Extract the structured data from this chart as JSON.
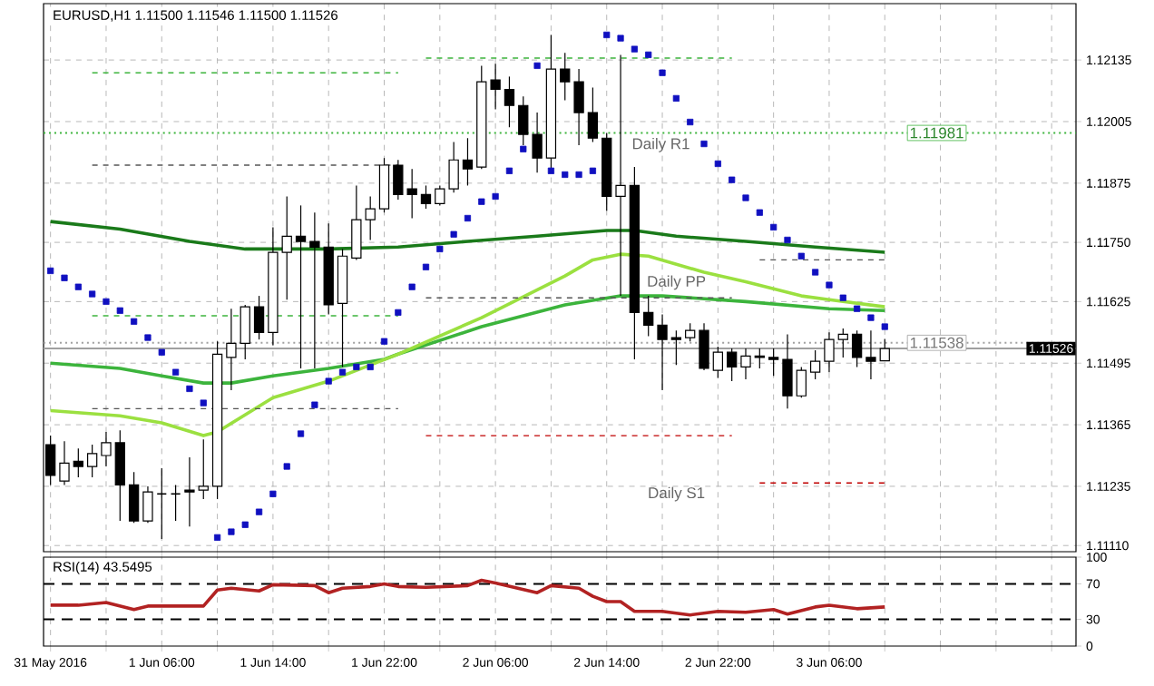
{
  "chart_data": [
    {
      "type": "candlestick",
      "title": "EURUSD,H1 1.11500 1.11546 1.11500 1.11526",
      "x": [
        "2016-05-31T22:00",
        "2016-05-31T23:00",
        "2016-06-01T00:00",
        "2016-06-01T01:00",
        "2016-06-01T02:00",
        "2016-06-01T03:00",
        "2016-06-01T04:00",
        "2016-06-01T05:00",
        "2016-06-01T06:00",
        "2016-06-01T07:00",
        "2016-06-01T08:00",
        "2016-06-01T09:00",
        "2016-06-01T10:00",
        "2016-06-01T11:00",
        "2016-06-01T12:00",
        "2016-06-01T13:00",
        "2016-06-01T14:00",
        "2016-06-01T15:00",
        "2016-06-01T16:00",
        "2016-06-01T17:00",
        "2016-06-01T18:00",
        "2016-06-01T19:00",
        "2016-06-01T20:00",
        "2016-06-01T21:00",
        "2016-06-01T22:00",
        "2016-06-01T23:00",
        "2016-06-02T00:00",
        "2016-06-02T01:00",
        "2016-06-02T02:00",
        "2016-06-02T03:00",
        "2016-06-02T04:00",
        "2016-06-02T05:00",
        "2016-06-02T06:00",
        "2016-06-02T07:00",
        "2016-06-02T08:00",
        "2016-06-02T09:00",
        "2016-06-02T10:00",
        "2016-06-02T11:00",
        "2016-06-02T12:00",
        "2016-06-02T13:00",
        "2016-06-02T14:00",
        "2016-06-02T15:00",
        "2016-06-02T16:00",
        "2016-06-02T17:00",
        "2016-06-02T18:00",
        "2016-06-02T19:00",
        "2016-06-02T20:00",
        "2016-06-02T21:00",
        "2016-06-02T22:00",
        "2016-06-02T23:00",
        "2016-06-03T00:00",
        "2016-06-03T01:00",
        "2016-06-03T02:00",
        "2016-06-03T03:00",
        "2016-06-03T04:00",
        "2016-06-03T05:00",
        "2016-06-03T06:00",
        "2016-06-03T07:00",
        "2016-06-03T08:00",
        "2016-06-03T09:00",
        "2016-06-03T10:00"
      ],
      "ohlc": [
        [
          1.11323,
          1.11342,
          1.11238,
          1.11258
        ],
        [
          1.11246,
          1.1133,
          1.11238,
          1.11284
        ],
        [
          1.11288,
          1.11315,
          1.11254,
          1.11277
        ],
        [
          1.11277,
          1.11323,
          1.11254,
          1.11304
        ],
        [
          1.113,
          1.1135,
          1.11277,
          1.11327
        ],
        [
          1.11327,
          1.11353,
          1.11162,
          1.11238
        ],
        [
          1.11238,
          1.11265,
          1.11158,
          1.11162
        ],
        [
          1.11162,
          1.11235,
          1.11158,
          1.11223
        ],
        [
          1.11219,
          1.11273,
          1.11124,
          1.11219
        ],
        [
          1.11219,
          1.11238,
          1.11162,
          1.11219
        ],
        [
          1.11227,
          1.11296,
          1.1115,
          1.11223
        ],
        [
          1.11227,
          1.11334,
          1.11208,
          1.11235
        ],
        [
          1.11235,
          1.11541,
          1.11208,
          1.11514
        ],
        [
          1.11507,
          1.1161,
          1.11438,
          1.11537
        ],
        [
          1.11537,
          1.11618,
          1.11503,
          1.11614
        ],
        [
          1.11614,
          1.11637,
          1.11545,
          1.1156
        ],
        [
          1.1156,
          1.11782,
          1.11533,
          1.11729
        ],
        [
          1.11729,
          1.11847,
          1.11629,
          1.11763
        ],
        [
          1.11763,
          1.11828,
          1.11484,
          1.11752
        ],
        [
          1.11752,
          1.11813,
          1.11484,
          1.1174
        ],
        [
          1.1174,
          1.1179,
          1.11598,
          1.11618
        ],
        [
          1.11621,
          1.11736,
          1.11487,
          1.11721
        ],
        [
          1.11717,
          1.1187,
          1.11713,
          1.11798
        ],
        [
          1.11798,
          1.11847,
          1.11755,
          1.11821
        ],
        [
          1.11821,
          1.11928,
          1.11813,
          1.11913
        ],
        [
          1.11913,
          1.11924,
          1.1184,
          1.11851
        ],
        [
          1.11863,
          1.11905,
          1.11801,
          1.11851
        ],
        [
          1.11851,
          1.1187,
          1.11821,
          1.11832
        ],
        [
          1.11832,
          1.1187,
          1.11828,
          1.11863
        ],
        [
          1.11863,
          1.11962,
          1.11855,
          1.11924
        ],
        [
          1.11924,
          1.1197,
          1.1187,
          1.11905
        ],
        [
          1.11909,
          1.12123,
          1.11905,
          1.12089
        ],
        [
          1.12093,
          1.12127,
          1.12031,
          1.12073
        ],
        [
          1.12073,
          1.121,
          1.11993,
          1.12039
        ],
        [
          1.12039,
          1.12058,
          1.11955,
          1.11978
        ],
        [
          1.11978,
          1.12024,
          1.11897,
          1.11928
        ],
        [
          1.11928,
          1.12188,
          1.11897,
          1.12116
        ],
        [
          1.12116,
          1.1215,
          1.1205,
          1.12089
        ],
        [
          1.12089,
          1.12116,
          1.11955,
          1.12024
        ],
        [
          1.12024,
          1.12077,
          1.11962,
          1.1197
        ],
        [
          1.1197,
          1.11981,
          1.11817,
          1.11847
        ],
        [
          1.11847,
          1.12146,
          1.11637,
          1.1187
        ],
        [
          1.1187,
          1.11909,
          1.11503,
          1.11602
        ],
        [
          1.11602,
          1.11637,
          1.11552,
          1.11575
        ],
        [
          1.11575,
          1.11598,
          1.11438,
          1.11545
        ],
        [
          1.11549,
          1.11564,
          1.11491,
          1.11545
        ],
        [
          1.11549,
          1.11579,
          1.11541,
          1.11564
        ],
        [
          1.11564,
          1.11579,
          1.1148,
          1.11484
        ],
        [
          1.1148,
          1.1153,
          1.11464,
          1.11518
        ],
        [
          1.11518,
          1.11526,
          1.11457,
          1.11487
        ],
        [
          1.11487,
          1.11526,
          1.11461,
          1.1151
        ],
        [
          1.1151,
          1.11526,
          1.11484,
          1.11507
        ],
        [
          1.11507,
          1.11526,
          1.11468,
          1.11503
        ],
        [
          1.11503,
          1.11556,
          1.11399,
          1.11426
        ],
        [
          1.11426,
          1.11487,
          1.11422,
          1.1148
        ],
        [
          1.11476,
          1.11522,
          1.11461,
          1.11499
        ],
        [
          1.11499,
          1.1156,
          1.11476,
          1.11545
        ],
        [
          1.11545,
          1.11568,
          1.11507,
          1.11556
        ],
        [
          1.11556,
          1.11564,
          1.11487,
          1.11507
        ],
        [
          1.11507,
          1.11564,
          1.11461,
          1.11499
        ],
        [
          1.115,
          1.11546,
          1.115,
          1.11526
        ]
      ],
      "series": [
        {
          "type": "line",
          "color": "#1a7a1a",
          "x": [
            "2016-05-31T22:00",
            "2016-06-01T03:00",
            "2016-06-01T08:00",
            "2016-06-01T12:00",
            "2016-06-01T18:00",
            "2016-06-01T23:00",
            "2016-06-02T04:00",
            "2016-06-02T09:00",
            "2016-06-02T14:00",
            "2016-06-02T16:00",
            "2016-06-02T19:00",
            "2016-06-03T00:00",
            "2016-06-03T05:00",
            "2016-06-03T10:00"
          ],
          "values": [
            1.11794,
            1.11778,
            1.11752,
            1.11736,
            1.11736,
            1.1174,
            1.11752,
            1.11763,
            1.11775,
            1.11775,
            1.11763,
            1.11752,
            1.1174,
            1.11729
          ]
        },
        {
          "type": "line",
          "color": "#3cb43c",
          "x": [
            "2016-05-31T22:00",
            "2016-06-01T03:00",
            "2016-06-01T06:00",
            "2016-06-01T09:00",
            "2016-06-01T11:00",
            "2016-06-01T14:00",
            "2016-06-01T18:00",
            "2016-06-01T22:00",
            "2016-06-01T23:00",
            "2016-06-02T05:00",
            "2016-06-02T11:00",
            "2016-06-02T15:00",
            "2016-06-02T18:00",
            "2016-06-03T00:00",
            "2016-06-03T06:00",
            "2016-06-03T10:00"
          ],
          "values": [
            1.11495,
            1.11484,
            1.11468,
            1.11453,
            1.11453,
            1.11468,
            1.11484,
            1.11503,
            1.11514,
            1.11572,
            1.11618,
            1.11637,
            1.11637,
            1.11625,
            1.1161,
            1.11606
          ]
        },
        {
          "type": "line",
          "color": "#9be040",
          "x": [
            "2016-05-31T22:00",
            "2016-06-01T03:00",
            "2016-06-01T06:00",
            "2016-06-01T09:00",
            "2016-06-01T10:00",
            "2016-06-01T14:00",
            "2016-06-01T18:00",
            "2016-06-01T23:00",
            "2016-06-02T05:00",
            "2016-06-02T11:00",
            "2016-06-02T13:00",
            "2016-06-02T15:00",
            "2016-06-02T17:00",
            "2016-06-02T21:00",
            "2016-06-03T00:00",
            "2016-06-03T04:00",
            "2016-06-03T06:00",
            "2016-06-03T10:00"
          ],
          "values": [
            1.11395,
            1.11384,
            1.11369,
            1.11342,
            1.1135,
            1.11422,
            1.11457,
            1.11514,
            1.11591,
            1.11679,
            1.11713,
            1.11725,
            1.11721,
            1.11687,
            1.11667,
            1.11637,
            1.11629,
            1.11614
          ]
        },
        {
          "type": "scatter",
          "color": "#1010c0",
          "marker": "square",
          "values": [
            1.1169,
            1.11675,
            1.11656,
            1.11641,
            1.11625,
            1.11606,
            1.11583,
            1.11549,
            1.11518,
            1.11476,
            1.11441,
            1.11411,
            1.11127,
            1.11139,
            1.11154,
            1.11181,
            1.11219,
            1.11277,
            1.11346,
            1.11407,
            1.11457,
            1.11476,
            1.11487,
            1.11487,
            1.11541,
            1.11602,
            1.11656,
            1.11698,
            1.11736,
            1.11767,
            1.11801,
            1.11836,
            1.11847,
            1.11901,
            1.11947,
            1.12123,
            1.11901,
            1.11893,
            1.11893,
            1.11901,
            1.12188,
            1.12181,
            1.12158,
            1.12146,
            1.12108,
            1.12054,
            1.12004,
            1.11958,
            1.11916,
            1.11882,
            1.11844,
            1.11813,
            1.11782,
            1.11755,
            1.11721,
            1.11687,
            1.1166,
            1.11633,
            1.1161,
            1.11591,
            1.11572
          ]
        },
        {
          "type": "line",
          "color": "#3cb43c",
          "line_style": "dashed",
          "x": [
            "2016-06-01T01:00",
            "2016-06-01T23:00"
          ],
          "values": [
            1.12108,
            1.12108
          ]
        },
        {
          "type": "line",
          "color": "#555555",
          "line_style": "dashed",
          "x": [
            "2016-06-01T01:00",
            "2016-06-01T23:00"
          ],
          "values": [
            1.11913,
            1.11913
          ]
        },
        {
          "type": "line",
          "color": "#3cb43c",
          "line_style": "dashed",
          "x": [
            "2016-06-01T01:00",
            "2016-06-01T23:00"
          ],
          "values": [
            1.11595,
            1.11595
          ]
        },
        {
          "type": "line",
          "color": "#555555",
          "line_style": "dashed",
          "x": [
            "2016-06-01T01:00",
            "2016-06-01T23:00"
          ],
          "values": [
            1.11399,
            1.11399
          ]
        },
        {
          "type": "line",
          "color": "#3cb43c",
          "line_style": "dashed",
          "x": [
            "2016-06-02T01:00",
            "2016-06-02T23:00"
          ],
          "values": [
            1.12139,
            1.12139
          ]
        },
        {
          "type": "line",
          "color": "#555555",
          "line_style": "dashed",
          "x": [
            "2016-06-02T01:00",
            "2016-06-02T23:00"
          ],
          "values": [
            1.11633,
            1.11633
          ]
        },
        {
          "type": "line",
          "color": "#c00000",
          "line_style": "dashed",
          "x": [
            "2016-06-02T01:00",
            "2016-06-02T23:00"
          ],
          "values": [
            1.11342,
            1.11342
          ]
        },
        {
          "type": "line",
          "color": "#555555",
          "line_style": "dashed",
          "x": [
            "2016-06-03T01:00",
            "2016-06-03T10:00"
          ],
          "values": [
            1.11713,
            1.11713
          ]
        },
        {
          "type": "line",
          "color": "#c00000",
          "line_style": "dashed",
          "x": [
            "2016-06-03T01:00",
            "2016-06-03T10:00"
          ],
          "values": [
            1.11242,
            1.11242
          ]
        }
      ],
      "ref_lines": [
        {
          "axis": "y",
          "value": 1.11981,
          "label": "1.11981",
          "color": "#3cb43c",
          "line_style": "dotted"
        },
        {
          "axis": "y",
          "value": 1.11538,
          "label": "1.11538",
          "color": "#a0a0a0",
          "line_style": "dotted"
        },
        {
          "axis": "y",
          "value": 1.11526,
          "label": "1.11526",
          "color": "#a0a0a0",
          "line_style": "solid"
        }
      ],
      "annotations": [
        "Daily R1",
        "Daily PP",
        "Daily S1"
      ],
      "xlim": [
        "2016-05-31T21:30",
        "2016-06-03T23:45"
      ],
      "xticks": [
        {
          "value": "2016-05-31T22:00",
          "label": null
        },
        {
          "value": "2016-06-01T02:00",
          "label": null
        },
        {
          "value": "2016-06-01T06:00",
          "label": null
        },
        {
          "value": "2016-06-01T10:00",
          "label": null
        },
        {
          "value": "2016-06-01T14:00",
          "label": null
        },
        {
          "value": "2016-06-01T18:00",
          "label": null
        },
        {
          "value": "2016-06-01T22:00",
          "label": null
        },
        {
          "value": "2016-06-02T02:00",
          "label": null
        },
        {
          "value": "2016-06-02T06:00",
          "label": null
        },
        {
          "value": "2016-06-02T10:00",
          "label": null
        },
        {
          "value": "2016-06-02T14:00",
          "label": null
        },
        {
          "value": "2016-06-02T18:00",
          "label": null
        },
        {
          "value": "2016-06-02T22:00",
          "label": null
        },
        {
          "value": "2016-06-03T02:00",
          "label": null
        },
        {
          "value": "2016-06-03T06:00",
          "label": null
        },
        {
          "value": "2016-06-03T10:00",
          "label": null
        },
        {
          "value": "2016-06-03T14:00",
          "label": null
        },
        {
          "value": "2016-06-03T18:00",
          "label": null
        },
        {
          "value": "2016-06-03T22:00",
          "label": null
        }
      ],
      "ylim": [
        1.11097,
        1.12254
      ],
      "yticks": [
        {
          "value": 1.1111,
          "label": "1.11110"
        },
        1.11235,
        1.11365,
        1.11495,
        1.11625,
        {
          "value": 1.1175,
          "label": "1.11750"
        },
        1.11875,
        1.12005,
        1.12135
      ],
      "grid": true,
      "tick_labels": "y"
    },
    {
      "type": "line",
      "title": "RSI(14) 43.5495",
      "x": [
        "2016-05-31T22:00",
        "2016-06-01T00:00",
        "2016-06-01T02:00",
        "2016-06-01T04:00",
        "2016-06-01T05:00",
        "2016-06-01T09:00",
        "2016-06-01T10:00",
        "2016-06-01T11:00",
        "2016-06-01T13:00",
        "2016-06-01T14:00",
        "2016-06-01T17:00",
        "2016-06-01T18:00",
        "2016-06-01T19:00",
        "2016-06-01T21:00",
        "2016-06-01T22:00",
        "2016-06-01T23:00",
        "2016-06-02T01:00",
        "2016-06-02T04:00",
        "2016-06-02T05:00",
        "2016-06-02T06:00",
        "2016-06-02T09:00",
        "2016-06-02T10:00",
        "2016-06-02T12:00",
        "2016-06-02T13:00",
        "2016-06-02T14:00",
        "2016-06-02T15:00",
        "2016-06-02T16:00",
        "2016-06-02T18:00",
        "2016-06-02T20:00",
        "2016-06-02T22:00",
        "2016-06-03T00:00",
        "2016-06-03T02:00",
        "2016-06-03T03:00",
        "2016-06-03T05:00",
        "2016-06-03T06:00",
        "2016-06-03T08:00",
        "2016-06-03T10:00"
      ],
      "series": [
        {
          "color": "#b22222",
          "values": [
            46,
            46,
            49,
            41,
            45,
            45,
            63,
            65,
            62,
            69,
            68,
            60,
            65,
            67,
            70,
            67,
            66,
            68,
            74,
            71,
            60,
            68,
            65,
            56,
            50,
            50,
            39,
            39,
            35,
            39,
            38,
            41,
            36,
            44,
            46,
            42,
            44
          ]
        }
      ],
      "ref_lines": [
        {
          "axis": "y",
          "value": 70,
          "color": "#000000",
          "line_style": "dashed"
        },
        {
          "axis": "y",
          "value": 30,
          "color": "#000000",
          "line_style": "dashed"
        }
      ],
      "xlim": [
        "2016-05-31T21:30",
        "2016-06-03T23:45"
      ],
      "xticks": [
        {
          "value": "2016-05-31T22:00",
          "label": "31 May 2016"
        },
        {
          "value": "2016-06-01T02:00",
          "label": null
        },
        {
          "value": "2016-06-01T06:00",
          "label": "1 Jun 06:00"
        },
        {
          "value": "2016-06-01T10:00",
          "label": null
        },
        {
          "value": "2016-06-01T14:00",
          "label": "1 Jun 14:00"
        },
        {
          "value": "2016-06-01T18:00",
          "label": null
        },
        {
          "value": "2016-06-01T22:00",
          "label": "1 Jun 22:00"
        },
        {
          "value": "2016-06-02T02:00",
          "label": null
        },
        {
          "value": "2016-06-02T06:00",
          "label": "2 Jun 06:00"
        },
        {
          "value": "2016-06-02T10:00",
          "label": null
        },
        {
          "value": "2016-06-02T14:00",
          "label": "2 Jun 14:00"
        },
        {
          "value": "2016-06-02T18:00",
          "label": null
        },
        {
          "value": "2016-06-02T22:00",
          "label": "2 Jun 22:00"
        },
        {
          "value": "2016-06-03T02:00",
          "label": null
        },
        {
          "value": "2016-06-03T06:00",
          "label": "3 Jun 06:00"
        },
        {
          "value": "2016-06-03T10:00",
          "label": null
        },
        {
          "value": "2016-06-03T14:00",
          "label": null
        },
        {
          "value": "2016-06-03T18:00",
          "label": null
        },
        {
          "value": "2016-06-03T22:00",
          "label": null
        }
      ],
      "ylim": [
        0,
        100
      ],
      "yticks": [
        0,
        30,
        70,
        100
      ],
      "grid": "x"
    }
  ]
}
